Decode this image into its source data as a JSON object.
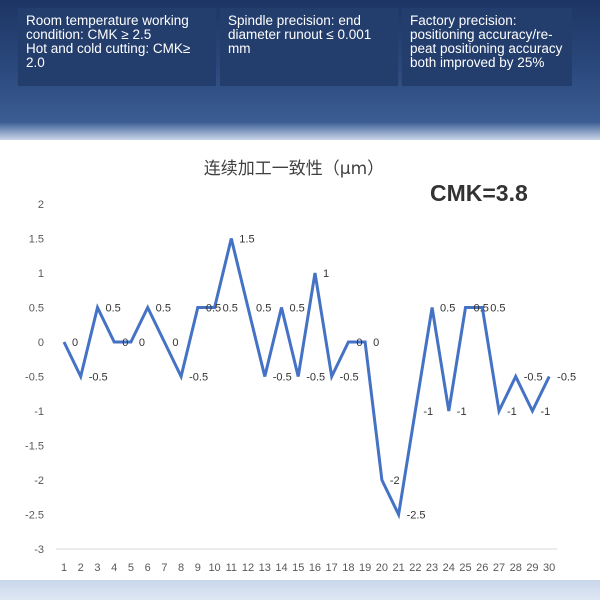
{
  "specs": [
    "Room temperature working condition: CMK ≥ 2.5\nHot and cold cutting: CMK≥ 2.0",
    "Spindle precision: end diameter runout ≤ 0.001 mm",
    "Factory precision: positioning accuracy/re-peat positioning accuracy both improved by 25%"
  ],
  "cmk_label": "CMK=3.8",
  "colors": {
    "line": "#4472c4",
    "banner": "#233d6d"
  },
  "chart_data": {
    "type": "line",
    "title": "连续加工一致性（μm）",
    "xlabel": "",
    "ylabel": "",
    "x": [
      1,
      2,
      3,
      4,
      5,
      6,
      7,
      8,
      9,
      10,
      11,
      12,
      13,
      14,
      15,
      16,
      17,
      18,
      19,
      20,
      21,
      22,
      23,
      24,
      25,
      26,
      27,
      28,
      29,
      30
    ],
    "series": [
      {
        "values": [
          0,
          -0.5,
          0.5,
          0,
          0,
          0.5,
          0,
          -0.5,
          0.5,
          0.5,
          1.5,
          0.5,
          -0.5,
          0.5,
          -0.5,
          1,
          -0.5,
          0,
          0,
          -2,
          -2.5,
          -1,
          0.5,
          -1,
          0.5,
          0.5,
          -1,
          -0.5,
          -1,
          -0.5
        ]
      }
    ],
    "data_labels": [
      "0",
      "-0.5",
      "0.5",
      "0",
      "0",
      "0.5",
      "0",
      "-0.5",
      "0.5",
      "0.5",
      "1.5",
      "0.5",
      "-0.5",
      "0.5",
      "-0.5",
      "1",
      "-0.5",
      "0",
      "0",
      "-2",
      "-2.5",
      "-1",
      "0.5",
      "-1",
      "0.5",
      "0.5",
      "-1",
      "-0.5",
      "-1",
      "-0.5"
    ],
    "y_ticks": [
      "2",
      "1.5",
      "1",
      "0.5",
      "0",
      "-0.5",
      "-1",
      "-1.5",
      "-2",
      "-2.5",
      "-3"
    ],
    "ylim": [
      -3,
      2
    ],
    "grid": false,
    "legend": "none"
  }
}
